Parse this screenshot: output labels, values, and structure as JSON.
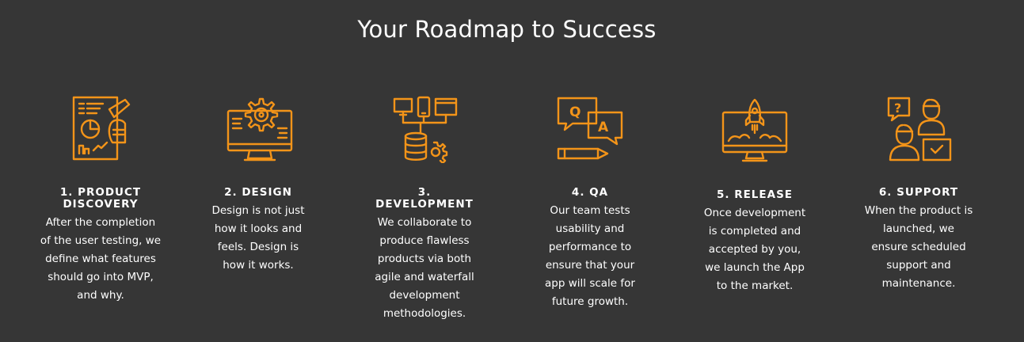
{
  "section": {
    "title": "Your Roadmap to Success"
  },
  "accent_color": "#f39419",
  "background_color": "#363636",
  "steps": [
    {
      "icon": "product-discovery-icon",
      "heading_line1": "1. PRODUCT",
      "heading_line2": "DISCOVERY",
      "desc_lines": [
        "After the completion",
        "of the user testing, we",
        "define what features",
        "should go into MVP,",
        "and why."
      ]
    },
    {
      "icon": "design-icon",
      "heading_line1": "2. DESIGN",
      "heading_line2": "",
      "desc_lines": [
        "Design is not just",
        "how it looks and",
        "feels. Design is",
        "how it works."
      ]
    },
    {
      "icon": "development-icon",
      "heading_line1": "3.",
      "heading_line2": "DEVELOPMENT",
      "desc_lines": [
        "We collaborate to",
        "produce flawless",
        "products via both",
        "agile and waterfall",
        "development",
        "methodologies."
      ]
    },
    {
      "icon": "qa-icon",
      "heading_line1": "4. QA",
      "heading_line2": "",
      "desc_lines": [
        "Our team tests",
        "usability and",
        "performance to",
        "ensure that your",
        "app will scale for",
        "future growth."
      ]
    },
    {
      "icon": "release-icon",
      "heading_line1": "5. RELEASE",
      "heading_line2": "",
      "desc_lines": [
        "Once development",
        "is completed and",
        "accepted by you,",
        "we launch the App",
        "to the market."
      ]
    },
    {
      "icon": "support-icon",
      "heading_line1": "6. SUPPORT",
      "heading_line2": "",
      "desc_lines": [
        "When the product is",
        "launched, we",
        "ensure scheduled",
        "support and",
        "maintenance."
      ]
    }
  ]
}
